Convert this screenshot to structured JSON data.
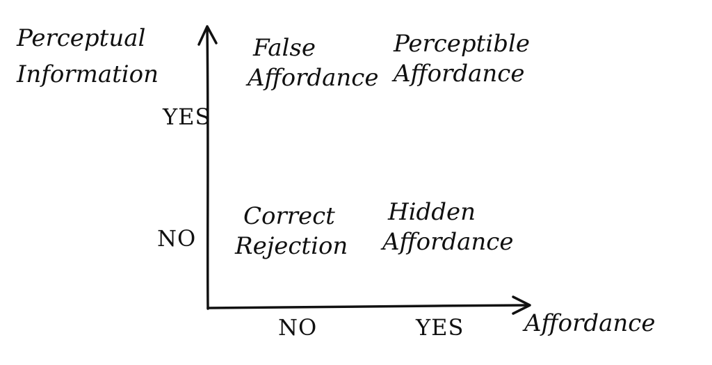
{
  "diagram": {
    "y_axis_title_line1": "Perceptual",
    "y_axis_title_line2": "Information",
    "x_axis_title": "Affordance",
    "y_ticks": {
      "yes": "YES",
      "no": "NO"
    },
    "x_ticks": {
      "no": "NO",
      "yes": "YES"
    },
    "quadrants": {
      "top_left": {
        "line1": "False",
        "line2": "Affordance"
      },
      "top_right": {
        "line1": "Perceptible",
        "line2": "Affordance"
      },
      "bottom_left": {
        "line1": "Correct",
        "line2": "Rejection"
      },
      "bottom_right": {
        "line1": "Hidden",
        "line2": "Affordance"
      }
    },
    "ink_color": "#111111",
    "background_color": "#ffffff"
  }
}
